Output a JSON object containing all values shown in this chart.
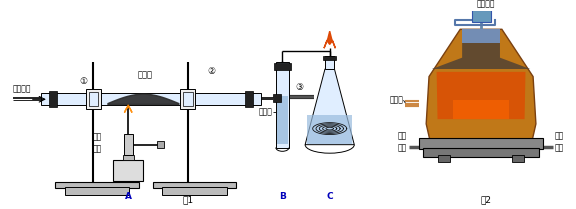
{
  "bg_color": "#ffffff",
  "fig1_label": "图1",
  "fig2_label": "图2",
  "label_CO": "一氧化碳",
  "label_iron_oxide": "氧化铁",
  "label_alcohol_lamp": "酒精\n喷灯",
  "label_limestone": "石灰水",
  "label_A": "A",
  "label_B": "B",
  "label_C": "C",
  "label_raw_material": "原料入口",
  "label_hot_air": "热空气",
  "label_slag_out": "炉渣\n出口",
  "label_pig_iron": "生铁\n出口",
  "num1": "①",
  "num2": "②",
  "num3": "③",
  "lc": "#000000",
  "blue_label": "#0000bb",
  "furnace_orange": "#c87820",
  "furnace_dark": "#7a4010",
  "furnace_red": "#e03000",
  "furnace_gray": "#888888",
  "furnace_blue": "#7799bb",
  "glass_fill": "#e0eeff",
  "liquid_fill": "#99bbdd",
  "clamp_white": "#f0f0f0",
  "stopper_black": "#222222",
  "powder_dark": "#2a2a2a",
  "lamp_gray": "#cccccc",
  "base_gray": "#bbbbbb"
}
